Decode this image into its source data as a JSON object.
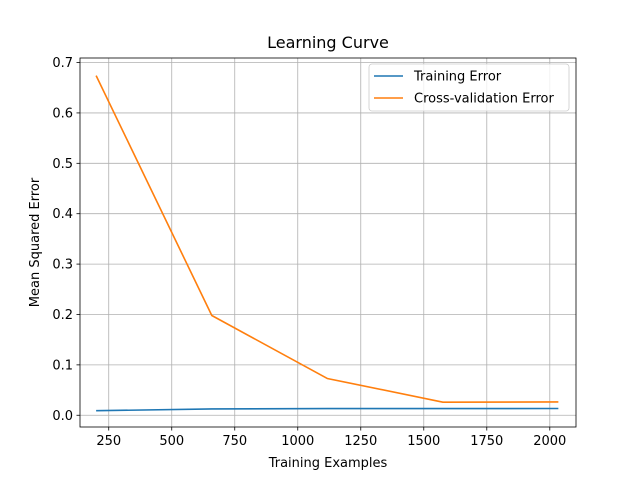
{
  "chart_data": {
    "type": "line",
    "title": "Learning Curve",
    "xlabel": "Training Examples",
    "ylabel": "Mean Squared Error",
    "xlim": [
      136,
      2104
    ],
    "ylim": [
      -0.0233,
      0.709
    ],
    "xticks": [
      250,
      500,
      750,
      1000,
      1250,
      1500,
      1750,
      2000
    ],
    "xtick_labels": [
      "250",
      "500",
      "750",
      "1000",
      "1250",
      "1500",
      "1750",
      "2000"
    ],
    "yticks": [
      0.0,
      0.1,
      0.2,
      0.3,
      0.4,
      0.5,
      0.6,
      0.7
    ],
    "ytick_labels": [
      "0.0",
      "0.1",
      "0.2",
      "0.3",
      "0.4",
      "0.5",
      "0.6",
      "0.7"
    ],
    "grid": true,
    "legend_position": "top-right",
    "x": [
      200,
      659,
      1117,
      1576,
      2034
    ],
    "series": [
      {
        "name": "Training Error",
        "color": "#1f77b4",
        "values": [
          0.009,
          0.0125,
          0.0132,
          0.0133,
          0.0134
        ]
      },
      {
        "name": "Cross-validation Error",
        "color": "#ff7f0e",
        "values": [
          0.674,
          0.198,
          0.073,
          0.026,
          0.0265
        ]
      }
    ]
  }
}
